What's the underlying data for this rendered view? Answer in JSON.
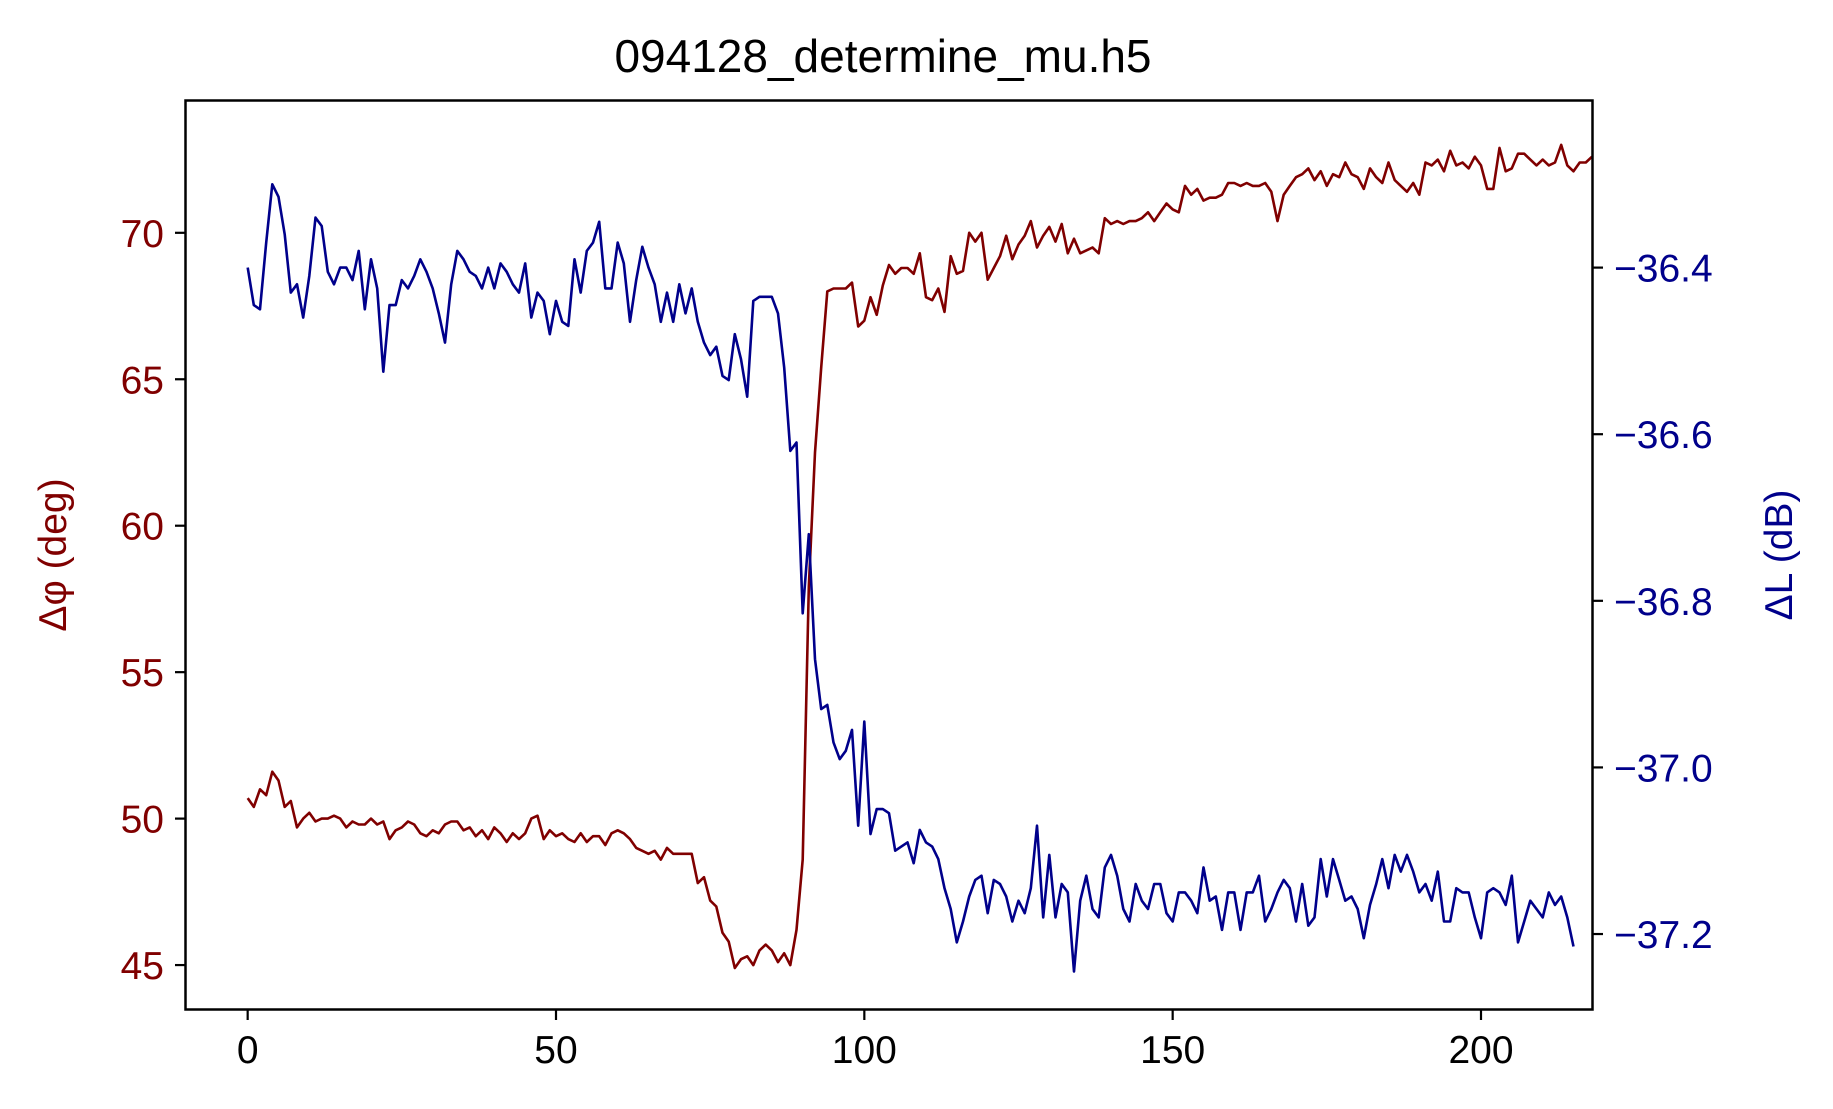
{
  "chart_data": {
    "type": "line",
    "title": "094128_determine_mu.h5",
    "xlabel": "",
    "xlim": [
      -10,
      218
    ],
    "xticks": [
      0,
      50,
      100,
      150,
      200
    ],
    "left_axis": {
      "label": "Δφ (deg)",
      "color": "#800000",
      "ylim": [
        43.5,
        74.5
      ],
      "ticks": [
        45,
        50,
        55,
        60,
        65,
        70
      ]
    },
    "right_axis": {
      "label": "ΔL (dB)",
      "color": "#00008b",
      "ylim": [
        -37.29,
        -36.2
      ],
      "ticks": [
        -36.4,
        -36.6,
        -36.8,
        -37.0,
        -37.2
      ],
      "tick_labels": [
        "−36.4",
        "−36.6",
        "−36.8",
        "−37.0",
        "−37.2"
      ]
    },
    "grid": false,
    "series": [
      {
        "axis": "left",
        "color": "#800000",
        "x_start": 0,
        "x_step": 1,
        "values": [
          50.7,
          50.4,
          51.0,
          50.8,
          51.6,
          51.3,
          50.4,
          50.6,
          49.7,
          50.0,
          50.2,
          49.9,
          50.0,
          50.0,
          50.1,
          50.0,
          49.7,
          49.9,
          49.8,
          49.8,
          50.0,
          49.8,
          49.9,
          49.3,
          49.6,
          49.7,
          49.9,
          49.8,
          49.5,
          49.4,
          49.6,
          49.5,
          49.8,
          49.9,
          49.9,
          49.6,
          49.7,
          49.4,
          49.6,
          49.3,
          49.7,
          49.5,
          49.2,
          49.5,
          49.3,
          49.5,
          50.0,
          50.1,
          49.3,
          49.6,
          49.4,
          49.5,
          49.3,
          49.2,
          49.5,
          49.2,
          49.4,
          49.4,
          49.1,
          49.5,
          49.6,
          49.5,
          49.3,
          49.0,
          48.9,
          48.8,
          48.9,
          48.6,
          49.0,
          48.8,
          48.8,
          48.8,
          48.8,
          47.8,
          48.0,
          47.2,
          47.0,
          46.1,
          45.8,
          44.9,
          45.2,
          45.3,
          45.0,
          45.5,
          45.7,
          45.5,
          45.1,
          45.4,
          45.0,
          46.2,
          48.6,
          57.9,
          62.5,
          65.4,
          68.0,
          68.1,
          68.1,
          68.1,
          68.3,
          66.8,
          67.0,
          67.8,
          67.2,
          68.2,
          68.9,
          68.6,
          68.8,
          68.8,
          68.6,
          69.3,
          67.8,
          67.7,
          68.1,
          67.3,
          69.2,
          68.6,
          68.7,
          70.0,
          69.7,
          70.0,
          68.4,
          68.8,
          69.2,
          69.9,
          69.1,
          69.6,
          69.9,
          70.4,
          69.5,
          69.9,
          70.2,
          69.7,
          70.3,
          69.3,
          69.8,
          69.3,
          69.4,
          69.5,
          69.3,
          70.5,
          70.3,
          70.4,
          70.3,
          70.4,
          70.4,
          70.5,
          70.7,
          70.4,
          70.7,
          71.0,
          70.8,
          70.7,
          71.6,
          71.3,
          71.5,
          71.1,
          71.2,
          71.2,
          71.3,
          71.7,
          71.7,
          71.6,
          71.7,
          71.6,
          71.6,
          71.7,
          71.4,
          70.4,
          71.3,
          71.6,
          71.9,
          72.0,
          72.2,
          71.8,
          72.1,
          71.6,
          72.0,
          71.9,
          72.4,
          72.0,
          71.9,
          71.5,
          72.2,
          71.9,
          71.7,
          72.4,
          71.8,
          71.6,
          71.4,
          71.7,
          71.3,
          72.4,
          72.3,
          72.5,
          72.1,
          72.8,
          72.3,
          72.4,
          72.2,
          72.6,
          72.3,
          71.5,
          71.5,
          72.9,
          72.1,
          72.2,
          72.7,
          72.7,
          72.5,
          72.3,
          72.5,
          72.3,
          72.4,
          73.0,
          72.3,
          72.1,
          72.4,
          72.4,
          72.6
        ]
      },
      {
        "axis": "right",
        "color": "#00008b",
        "x_start": 0,
        "x_step": 1,
        "values": [
          -36.4,
          -36.445,
          -36.45,
          -36.37,
          -36.3,
          -36.315,
          -36.36,
          -36.43,
          -36.42,
          -36.46,
          -36.41,
          -36.34,
          -36.35,
          -36.405,
          -36.42,
          -36.4,
          -36.4,
          -36.415,
          -36.38,
          -36.45,
          -36.39,
          -36.425,
          -36.525,
          -36.445,
          -36.445,
          -36.415,
          -36.425,
          -36.41,
          -36.39,
          -36.405,
          -36.425,
          -36.455,
          -36.49,
          -36.42,
          -36.38,
          -36.39,
          -36.405,
          -36.41,
          -36.425,
          -36.4,
          -36.425,
          -36.395,
          -36.405,
          -36.42,
          -36.43,
          -36.395,
          -36.46,
          -36.43,
          -36.44,
          -36.48,
          -36.44,
          -36.465,
          -36.47,
          -36.39,
          -36.43,
          -36.38,
          -36.37,
          -36.345,
          -36.425,
          -36.425,
          -36.37,
          -36.395,
          -36.465,
          -36.415,
          -36.375,
          -36.4,
          -36.42,
          -36.465,
          -36.43,
          -36.465,
          -36.42,
          -36.455,
          -36.425,
          -36.465,
          -36.49,
          -36.505,
          -36.495,
          -36.53,
          -36.535,
          -36.48,
          -36.51,
          -36.555,
          -36.44,
          -36.435,
          -36.435,
          -36.435,
          -36.455,
          -36.52,
          -36.62,
          -36.61,
          -36.815,
          -36.72,
          -36.87,
          -36.93,
          -36.925,
          -36.97,
          -36.99,
          -36.98,
          -36.955,
          -37.07,
          -36.945,
          -37.08,
          -37.05,
          -37.05,
          -37.055,
          -37.1,
          -37.095,
          -37.09,
          -37.115,
          -37.075,
          -37.09,
          -37.095,
          -37.11,
          -37.145,
          -37.17,
          -37.21,
          -37.185,
          -37.155,
          -37.135,
          -37.13,
          -37.175,
          -37.135,
          -37.14,
          -37.155,
          -37.185,
          -37.16,
          -37.175,
          -37.145,
          -37.07,
          -37.18,
          -37.105,
          -37.18,
          -37.14,
          -37.15,
          -37.245,
          -37.16,
          -37.13,
          -37.17,
          -37.18,
          -37.12,
          -37.105,
          -37.13,
          -37.17,
          -37.185,
          -37.14,
          -37.16,
          -37.17,
          -37.14,
          -37.14,
          -37.175,
          -37.185,
          -37.15,
          -37.15,
          -37.16,
          -37.175,
          -37.12,
          -37.16,
          -37.155,
          -37.195,
          -37.15,
          -37.15,
          -37.195,
          -37.15,
          -37.15,
          -37.13,
          -37.185,
          -37.17,
          -37.15,
          -37.135,
          -37.145,
          -37.185,
          -37.14,
          -37.19,
          -37.18,
          -37.11,
          -37.155,
          -37.11,
          -37.135,
          -37.16,
          -37.155,
          -37.17,
          -37.205,
          -37.165,
          -37.14,
          -37.11,
          -37.145,
          -37.105,
          -37.125,
          -37.105,
          -37.125,
          -37.15,
          -37.14,
          -37.16,
          -37.125,
          -37.185,
          -37.185,
          -37.145,
          -37.15,
          -37.15,
          -37.18,
          -37.205,
          -37.15,
          -37.145,
          -37.15,
          -37.165,
          -37.13,
          -37.21,
          -37.185,
          -37.16,
          -37.17,
          -37.18,
          -37.15,
          -37.165,
          -37.155,
          -37.18,
          -37.215
        ]
      }
    ]
  }
}
